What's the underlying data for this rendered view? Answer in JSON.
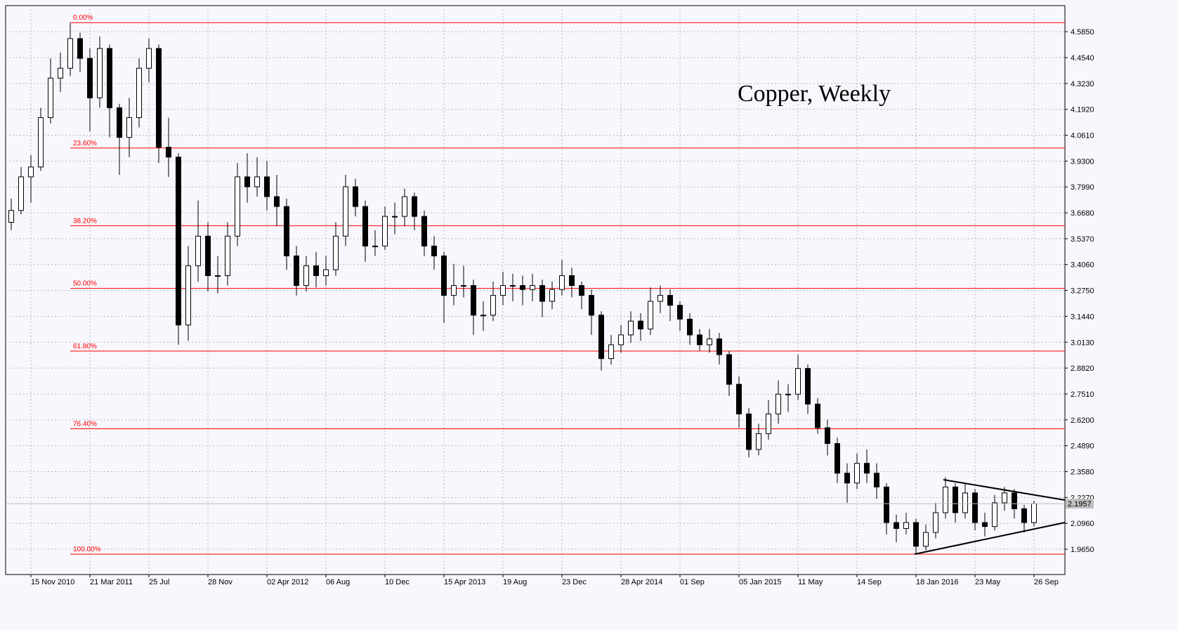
{
  "chart_data": {
    "type": "candlestick",
    "title": "Copper, Weekly",
    "categories": [
      null,
      null,
      "15 Nov 2010",
      null,
      null,
      null,
      null,
      null,
      "21 Mar 2011",
      null,
      null,
      null,
      null,
      null,
      "25 Jul",
      null,
      null,
      null,
      null,
      null,
      "28 Nov",
      null,
      null,
      null,
      null,
      null,
      "02 Apr 2012",
      null,
      null,
      null,
      null,
      null,
      "06 Aug",
      null,
      null,
      null,
      null,
      null,
      "10 Dec",
      null,
      null,
      null,
      null,
      null,
      "15 Apr 2013",
      null,
      null,
      null,
      null,
      null,
      "19 Aug",
      null,
      null,
      null,
      null,
      null,
      "23 Dec",
      null,
      null,
      null,
      null,
      null,
      "28 Apr 2014",
      null,
      null,
      null,
      null,
      null,
      "01 Sep",
      null,
      null,
      null,
      null,
      null,
      "05 Jan 2015",
      null,
      null,
      null,
      null,
      null,
      "11 May",
      null,
      null,
      null,
      null,
      null,
      "14 Sep",
      null,
      null,
      null,
      null,
      null,
      "18 Jan 2016",
      null,
      null,
      null,
      null,
      null,
      "23 May",
      null,
      null,
      null,
      null,
      null,
      "26 Sep"
    ],
    "open": [
      3.62,
      3.68,
      3.85,
      3.9,
      4.15,
      4.35,
      4.4,
      4.55,
      4.45,
      4.25,
      4.5,
      4.2,
      4.05,
      4.15,
      4.4,
      4.5,
      4.0,
      3.95,
      3.1,
      3.4,
      3.55,
      3.35,
      3.35,
      3.55,
      3.85,
      3.8,
      3.85,
      3.75,
      3.7,
      3.45,
      3.3,
      3.4,
      3.35,
      3.38,
      3.55,
      3.8,
      3.7,
      3.5,
      3.5,
      3.65,
      3.65,
      3.75,
      3.65,
      3.5,
      3.45,
      3.25,
      3.3,
      3.3,
      3.15,
      3.15,
      3.25,
      3.3,
      3.3,
      3.28,
      3.3,
      3.22,
      3.28,
      3.35,
      3.3,
      3.25,
      3.15,
      2.93,
      3.0,
      3.05,
      3.12,
      3.08,
      3.22,
      3.25,
      3.2,
      3.13,
      3.05,
      3.0,
      3.03,
      2.95,
      2.8,
      2.65,
      2.47,
      2.55,
      2.65,
      2.75,
      2.75,
      2.88,
      2.7,
      2.58,
      2.5,
      2.35,
      2.3,
      2.4,
      2.35,
      2.28,
      2.1,
      2.07,
      2.1,
      1.98,
      2.05,
      2.15,
      2.28,
      2.15,
      2.25,
      2.1,
      2.08,
      2.2,
      2.25,
      2.17,
      2.1
    ],
    "high": [
      3.74,
      3.9,
      3.96,
      4.2,
      4.45,
      4.48,
      4.63,
      4.58,
      4.5,
      4.56,
      4.52,
      4.22,
      4.25,
      4.45,
      4.55,
      4.52,
      4.15,
      3.97,
      3.5,
      3.73,
      3.62,
      3.45,
      3.62,
      3.92,
      3.97,
      3.95,
      3.93,
      3.86,
      3.74,
      3.5,
      3.45,
      3.47,
      3.45,
      3.62,
      3.86,
      3.84,
      3.73,
      3.58,
      3.7,
      3.72,
      3.79,
      3.77,
      3.68,
      3.55,
      3.47,
      3.41,
      3.4,
      3.33,
      3.22,
      3.32,
      3.37,
      3.36,
      3.35,
      3.36,
      3.33,
      3.32,
      3.43,
      3.39,
      3.32,
      3.28,
      3.17,
      3.05,
      3.1,
      3.17,
      3.16,
      3.29,
      3.3,
      3.28,
      3.22,
      3.16,
      3.08,
      3.08,
      3.06,
      2.97,
      2.84,
      2.68,
      2.6,
      2.72,
      2.82,
      2.8,
      2.95,
      2.9,
      2.73,
      2.62,
      2.53,
      2.4,
      2.45,
      2.47,
      2.4,
      2.3,
      2.14,
      2.15,
      2.12,
      2.09,
      2.2,
      2.33,
      2.3,
      2.3,
      2.27,
      2.15,
      2.24,
      2.28,
      2.27,
      2.19,
      2.21
    ],
    "low": [
      3.58,
      3.66,
      3.72,
      3.88,
      4.12,
      4.28,
      4.36,
      4.38,
      4.08,
      4.2,
      4.05,
      3.86,
      3.95,
      4.1,
      4.33,
      3.92,
      3.85,
      3.0,
      3.02,
      3.32,
      3.27,
      3.26,
      3.3,
      3.5,
      3.72,
      3.75,
      3.68,
      3.6,
      3.38,
      3.25,
      3.27,
      3.29,
      3.3,
      3.35,
      3.5,
      3.65,
      3.42,
      3.45,
      3.48,
      3.56,
      3.6,
      3.58,
      3.45,
      3.38,
      3.11,
      3.2,
      3.24,
      3.05,
      3.07,
      3.12,
      3.2,
      3.22,
      3.2,
      3.22,
      3.14,
      3.18,
      3.25,
      3.24,
      3.18,
      3.05,
      2.87,
      2.9,
      2.96,
      3.01,
      3.02,
      3.05,
      3.16,
      3.12,
      3.07,
      3.0,
      2.97,
      2.96,
      2.9,
      2.74,
      2.58,
      2.43,
      2.44,
      2.52,
      2.6,
      2.66,
      2.72,
      2.65,
      2.55,
      2.44,
      2.3,
      2.2,
      2.27,
      2.3,
      2.22,
      2.04,
      2.0,
      2.04,
      1.94,
      1.96,
      2.02,
      2.12,
      2.1,
      2.12,
      2.06,
      2.03,
      2.06,
      2.16,
      2.12,
      2.05,
      2.08
    ],
    "close": [
      3.68,
      3.85,
      3.9,
      4.15,
      4.35,
      4.4,
      4.55,
      4.45,
      4.25,
      4.5,
      4.2,
      4.05,
      4.15,
      4.4,
      4.5,
      4.0,
      3.95,
      3.1,
      3.4,
      3.55,
      3.35,
      3.35,
      3.55,
      3.85,
      3.8,
      3.85,
      3.75,
      3.7,
      3.45,
      3.3,
      3.4,
      3.35,
      3.38,
      3.55,
      3.8,
      3.7,
      3.5,
      3.5,
      3.65,
      3.65,
      3.75,
      3.65,
      3.5,
      3.45,
      3.25,
      3.3,
      3.3,
      3.15,
      3.15,
      3.25,
      3.3,
      3.3,
      3.28,
      3.3,
      3.22,
      3.28,
      3.35,
      3.3,
      3.25,
      3.15,
      2.93,
      3.0,
      3.05,
      3.12,
      3.08,
      3.22,
      3.25,
      3.2,
      3.13,
      3.05,
      3.0,
      3.03,
      2.95,
      2.8,
      2.65,
      2.47,
      2.55,
      2.65,
      2.75,
      2.75,
      2.88,
      2.7,
      2.58,
      2.5,
      2.35,
      2.3,
      2.4,
      2.35,
      2.28,
      2.1,
      2.07,
      2.1,
      1.98,
      2.05,
      2.15,
      2.28,
      2.15,
      2.25,
      2.1,
      2.08,
      2.2,
      2.25,
      2.17,
      2.1,
      2.1957
    ],
    "ylim": [
      1.837,
      4.717
    ],
    "yticks": [
      {
        "value": 1.965,
        "label": "1.9650"
      },
      {
        "value": 2.096,
        "label": "2.0960"
      },
      {
        "value": 2.227,
        "label": "2.2270"
      },
      {
        "value": 2.358,
        "label": "2.3580"
      },
      {
        "value": 2.489,
        "label": "2.4890"
      },
      {
        "value": 2.62,
        "label": "2.6200"
      },
      {
        "value": 2.751,
        "label": "2.7510"
      },
      {
        "value": 2.882,
        "label": "2.8820"
      },
      {
        "value": 3.013,
        "label": "3.0130"
      },
      {
        "value": 3.144,
        "label": "3.1440"
      },
      {
        "value": 3.275,
        "label": "3.2750"
      },
      {
        "value": 3.406,
        "label": "3.4060"
      },
      {
        "value": 3.537,
        "label": "3.5370"
      },
      {
        "value": 3.668,
        "label": "3.6680"
      },
      {
        "value": 3.799,
        "label": "3.7990"
      },
      {
        "value": 3.93,
        "label": "3.9300"
      },
      {
        "value": 4.061,
        "label": "4.0610"
      },
      {
        "value": 4.192,
        "label": "4.1920"
      },
      {
        "value": 4.323,
        "label": "4.3230"
      },
      {
        "value": 4.454,
        "label": "4.4540"
      },
      {
        "value": 4.585,
        "label": "4.5850"
      }
    ],
    "fib_levels": [
      {
        "value": 4.631,
        "label": "0.00%"
      },
      {
        "value": 3.996,
        "label": "23.60%"
      },
      {
        "value": 3.603,
        "label": "38.20%"
      },
      {
        "value": 3.2855,
        "label": "50.00%"
      },
      {
        "value": 2.968,
        "label": "61.80%"
      },
      {
        "value": 2.575,
        "label": "76.40%"
      },
      {
        "value": 1.94,
        "label": "100.00%"
      }
    ],
    "last_price": {
      "value": 2.1957,
      "label": "2.1957"
    },
    "grid": true
  }
}
